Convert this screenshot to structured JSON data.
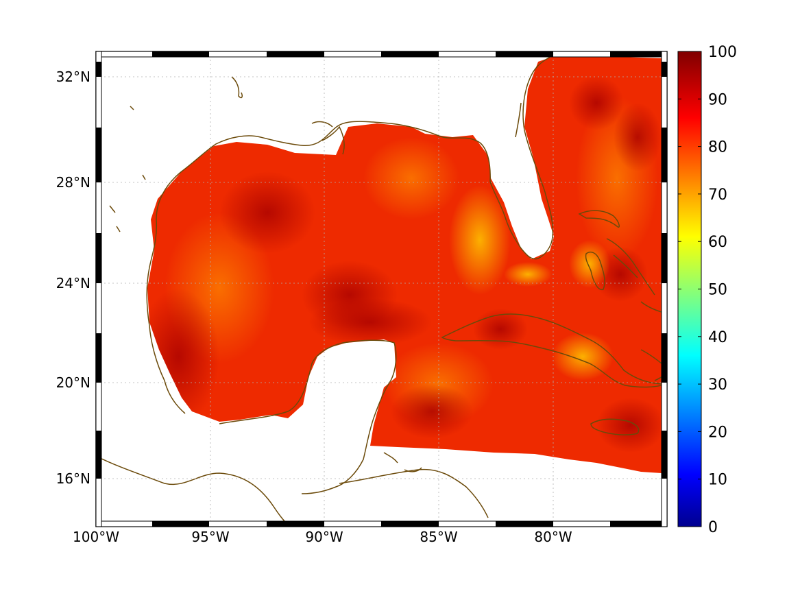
{
  "map": {
    "lon_labels": [
      "100°W",
      "95°W",
      "90°W",
      "85°W",
      "80°W"
    ],
    "lat_labels": [
      "32°N",
      "28°N",
      "24°N",
      "20°N",
      "16°N"
    ],
    "extent": {
      "lon_min": -100,
      "lon_max": -75,
      "lat_min": 14.2,
      "lat_max": 32.9
    },
    "coast_color": "#6b4a0a",
    "land_color": "#ffffff",
    "grid": "dotted"
  },
  "colorbar": {
    "ticks": [
      "100",
      "90",
      "80",
      "70",
      "60",
      "50",
      "40",
      "30",
      "20",
      "10",
      "0"
    ],
    "min": 0,
    "max": 100,
    "colormap": "jet"
  }
}
